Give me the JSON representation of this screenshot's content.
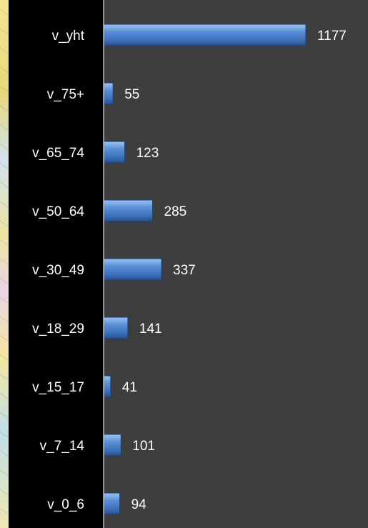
{
  "chart_data": {
    "type": "bar",
    "orientation": "horizontal",
    "categories": [
      "v_yht",
      "v_75+",
      "v_65_74",
      "v_50_64",
      "v_30_49",
      "v_18_29",
      "v_15_17",
      "v_7_14",
      "v_0_6"
    ],
    "values": [
      1177,
      55,
      123,
      285,
      337,
      141,
      41,
      101,
      94
    ],
    "data_labels": [
      "1177",
      "55",
      "123",
      "285",
      "337",
      "141",
      "41",
      "101",
      "94"
    ],
    "title": "",
    "xlabel": "",
    "ylabel": "",
    "grid": false,
    "legend": "none",
    "colors": {
      "bar": "#4a7fc6",
      "plot_background": "#3e3e3e",
      "label_background": "#000000",
      "text": "#ffffff"
    }
  }
}
